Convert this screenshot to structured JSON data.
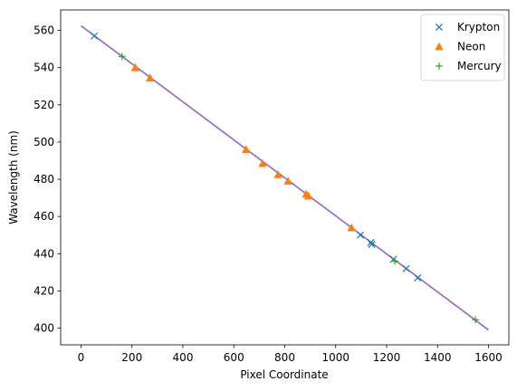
{
  "chart_data": {
    "type": "scatter",
    "xlabel": "Pixel Coordinate",
    "ylabel": "Wavelength (nm)",
    "xlim": [
      -80,
      1680
    ],
    "ylim": [
      391,
      571
    ],
    "x_ticks": [
      0,
      200,
      400,
      600,
      800,
      1000,
      1200,
      1400,
      1600
    ],
    "y_ticks": [
      400,
      420,
      440,
      460,
      480,
      500,
      520,
      540,
      560
    ],
    "grid": false,
    "legend_position": "top-right",
    "fit_line": {
      "x": [
        0,
        1600
      ],
      "y": [
        562.5,
        399
      ],
      "color": "#9467bd"
    },
    "series": [
      {
        "name": "Krypton",
        "marker": "x",
        "color": "#1f77b4",
        "points": [
          [
            52,
            557
          ],
          [
            1097,
            450
          ],
          [
            1138,
            446
          ],
          [
            1142,
            445
          ],
          [
            1227,
            437
          ],
          [
            1277,
            432
          ],
          [
            1322,
            427
          ]
        ]
      },
      {
        "name": "Neon",
        "marker": "triangle",
        "color": "#ff7f0e",
        "points": [
          [
            213,
            540
          ],
          [
            271,
            534.5
          ],
          [
            648,
            496
          ],
          [
            713,
            488.5
          ],
          [
            774,
            482.5
          ],
          [
            813,
            479
          ],
          [
            884,
            472
          ],
          [
            893,
            471
          ],
          [
            1062,
            454
          ]
        ]
      },
      {
        "name": "Mercury",
        "marker": "plus",
        "color": "#2ca02c",
        "points": [
          [
            161,
            546
          ],
          [
            1232,
            436
          ],
          [
            1549,
            404.5
          ]
        ]
      }
    ]
  }
}
